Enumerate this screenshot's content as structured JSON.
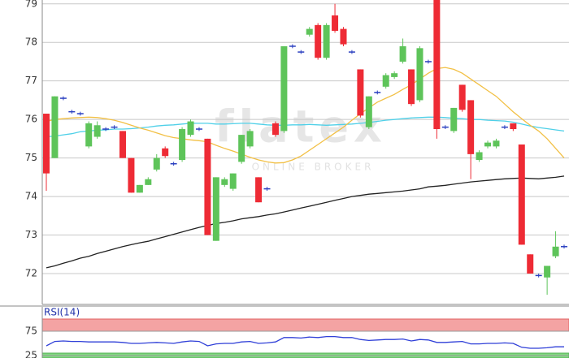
{
  "chart_data": [
    {
      "type": "candlestick",
      "watermark": "flatex",
      "watermark_subtitle": "ONLINE BROKER",
      "open": [
        76.15,
        75.0,
        76.55,
        76.2,
        76.15,
        75.3,
        75.55,
        75.75,
        75.8,
        75.7,
        75.0,
        74.1,
        74.3,
        74.7,
        75.25,
        74.85,
        74.95,
        75.6,
        75.75,
        75.5,
        72.85,
        74.3,
        74.2,
        74.9,
        75.3,
        74.5,
        74.2,
        75.9,
        75.7,
        77.9,
        77.75,
        78.2,
        78.45,
        77.6,
        78.7,
        78.35,
        77.75,
        77.3,
        75.8,
        76.7,
        76.85,
        77.1,
        77.5,
        77.3,
        76.5,
        77.5,
        79.1,
        75.8,
        75.7,
        76.9,
        76.5,
        74.95,
        75.3,
        75.3,
        75.8,
        75.9,
        75.35,
        72.5,
        71.95,
        71.9,
        72.45,
        72.7
      ],
      "high": [
        76.15,
        76.6,
        76.6,
        76.25,
        76.2,
        75.95,
        75.95,
        75.8,
        75.85,
        75.7,
        75.0,
        74.3,
        74.5,
        75.1,
        75.3,
        74.9,
        75.8,
        76.0,
        75.8,
        75.5,
        74.5,
        74.5,
        74.6,
        75.6,
        75.75,
        74.5,
        74.25,
        75.95,
        77.9,
        77.95,
        77.8,
        78.4,
        78.5,
        78.5,
        79.0,
        78.4,
        77.8,
        77.3,
        76.6,
        76.75,
        77.2,
        77.25,
        78.1,
        77.3,
        77.9,
        77.55,
        79.1,
        75.85,
        76.3,
        76.9,
        76.5,
        75.2,
        75.45,
        75.5,
        75.85,
        75.9,
        75.35,
        72.5,
        72.0,
        72.2,
        73.1,
        72.75
      ],
      "low": [
        74.15,
        75.0,
        76.5,
        76.15,
        76.1,
        75.25,
        75.5,
        75.7,
        75.75,
        75.0,
        74.1,
        74.1,
        74.3,
        74.65,
        75.0,
        74.8,
        74.9,
        75.55,
        75.7,
        73.0,
        72.85,
        74.25,
        74.15,
        74.85,
        75.25,
        73.85,
        74.15,
        75.55,
        75.65,
        77.85,
        77.7,
        78.15,
        77.55,
        77.55,
        78.25,
        77.9,
        77.7,
        76.05,
        75.75,
        76.65,
        76.8,
        77.05,
        77.45,
        76.35,
        76.45,
        77.45,
        75.5,
        75.75,
        75.65,
        76.2,
        74.45,
        74.9,
        75.25,
        75.25,
        75.75,
        75.7,
        72.75,
        72.0,
        71.9,
        71.45,
        72.4,
        72.65
      ],
      "close": [
        74.6,
        76.6,
        76.55,
        76.2,
        76.15,
        75.9,
        75.85,
        75.75,
        75.8,
        75.0,
        74.1,
        74.3,
        74.45,
        75.0,
        75.05,
        74.85,
        75.75,
        75.95,
        75.75,
        73.0,
        74.5,
        74.45,
        74.6,
        75.6,
        75.7,
        73.85,
        74.2,
        75.6,
        77.9,
        77.9,
        77.75,
        78.35,
        77.6,
        78.45,
        78.3,
        77.95,
        77.75,
        76.1,
        76.6,
        76.7,
        77.15,
        77.2,
        77.9,
        76.4,
        77.85,
        77.5,
        75.75,
        75.8,
        76.3,
        76.25,
        75.1,
        75.15,
        75.4,
        75.45,
        75.8,
        75.75,
        72.75,
        72.0,
        71.95,
        72.2,
        72.7,
        72.7
      ],
      "up_color": "#5ec45a",
      "down_color": "#ee2b35",
      "flat_color": "#2a3fc0",
      "overlays": [
        {
          "color": "#222222",
          "values": [
            72.15,
            72.2,
            72.27,
            72.33,
            72.4,
            72.45,
            72.52,
            72.58,
            72.64,
            72.7,
            72.75,
            72.8,
            72.84,
            72.9,
            72.96,
            73.02,
            73.08,
            73.14,
            73.2,
            73.25,
            73.3,
            73.33,
            73.37,
            73.42,
            73.45,
            73.48,
            73.52,
            73.55,
            73.6,
            73.65,
            73.7,
            73.75,
            73.8,
            73.85,
            73.9,
            73.95,
            74.0,
            74.03,
            74.06,
            74.08,
            74.1,
            74.12,
            74.14,
            74.17,
            74.2,
            74.25,
            74.27,
            74.29,
            74.32,
            74.35,
            74.38,
            74.4,
            74.42,
            74.44,
            74.46,
            74.47,
            74.48,
            74.47,
            74.46,
            74.48,
            74.5,
            74.53
          ]
        },
        {
          "color": "#4fd0e8",
          "values": [
            75.55,
            75.57,
            75.6,
            75.63,
            75.68,
            75.7,
            75.72,
            75.73,
            75.75,
            75.75,
            75.76,
            75.78,
            75.8,
            75.83,
            75.85,
            75.86,
            75.88,
            75.9,
            75.9,
            75.9,
            75.88,
            75.88,
            75.89,
            75.9,
            75.9,
            75.88,
            75.86,
            75.85,
            75.85,
            75.86,
            75.86,
            75.87,
            75.86,
            75.85,
            75.86,
            75.87,
            75.88,
            75.9,
            75.92,
            75.95,
            75.98,
            76.0,
            76.02,
            76.04,
            76.05,
            76.06,
            76.06,
            76.05,
            76.03,
            76.02,
            76.0,
            76.0,
            75.98,
            75.97,
            75.96,
            75.93,
            75.88,
            75.83,
            75.79,
            75.76,
            75.73,
            75.7
          ]
        },
        {
          "color": "#f2c045",
          "values": [
            75.95,
            76.0,
            76.02,
            76.04,
            76.05,
            76.06,
            76.05,
            76.02,
            75.98,
            75.92,
            75.85,
            75.78,
            75.72,
            75.65,
            75.58,
            75.53,
            75.5,
            75.47,
            75.45,
            75.42,
            75.33,
            75.25,
            75.18,
            75.1,
            75.02,
            74.95,
            74.9,
            74.87,
            74.88,
            74.95,
            75.05,
            75.2,
            75.35,
            75.5,
            75.65,
            75.8,
            75.98,
            76.15,
            76.3,
            76.45,
            76.55,
            76.65,
            76.78,
            76.9,
            77.05,
            77.2,
            77.32,
            77.35,
            77.3,
            77.2,
            77.05,
            76.9,
            76.75,
            76.6,
            76.4,
            76.2,
            76.02,
            75.85,
            75.7,
            75.5,
            75.25,
            75.0
          ]
        }
      ],
      "ylim": [
        71.2,
        79.1
      ],
      "yticks": [
        72,
        73,
        74,
        75,
        76,
        77,
        78,
        79
      ],
      "grid": true
    },
    {
      "type": "line",
      "title": "RSI(14)",
      "color": "#2f3fd8",
      "values": [
        45,
        54,
        55,
        54,
        54,
        53,
        53,
        53,
        53,
        52,
        50,
        50,
        51,
        52,
        51,
        50,
        53,
        55,
        54,
        45,
        49,
        50,
        50,
        53,
        54,
        50,
        51,
        53,
        62,
        62,
        61,
        63,
        62,
        64,
        64,
        62,
        62,
        58,
        56,
        57,
        58,
        58,
        59,
        55,
        58,
        57,
        52,
        52,
        53,
        54,
        49,
        49,
        50,
        50,
        51,
        50,
        42,
        40,
        40,
        41,
        43,
        43
      ],
      "ylim": [
        20,
        100
      ],
      "yticks": [
        25,
        75
      ],
      "overbought_color": "#f4a3a3",
      "oversold_color": "#82d882",
      "grid": true
    }
  ]
}
